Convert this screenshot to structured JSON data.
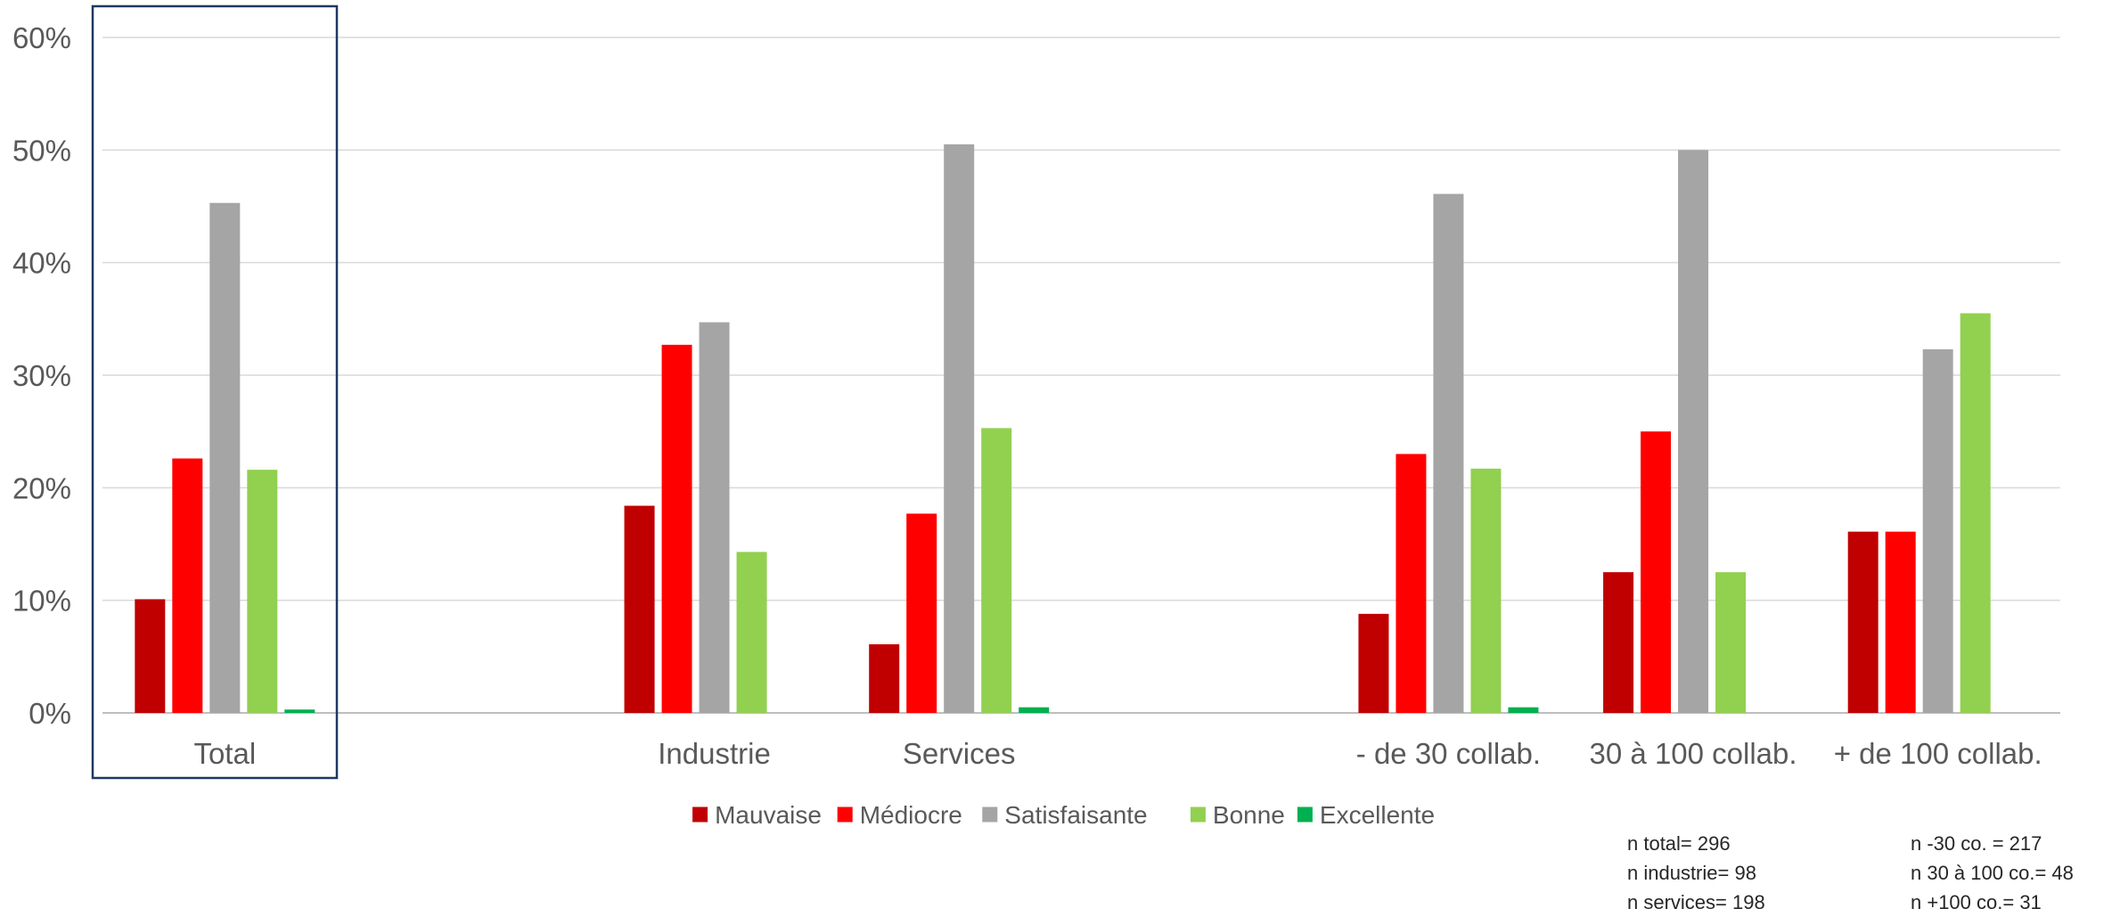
{
  "chart_data": {
    "type": "bar",
    "categories": [
      "Total",
      "",
      "Industrie",
      "Services",
      "",
      "- de 30 collab.",
      "30 à 100 collab.",
      "+ de 100 collab."
    ],
    "series": [
      {
        "name": "Mauvaise",
        "color": "#C00000",
        "values": [
          10.1,
          null,
          18.4,
          6.1,
          null,
          8.8,
          12.5,
          16.1
        ]
      },
      {
        "name": "Médiocre",
        "color": "#FF0000",
        "values": [
          22.6,
          null,
          32.7,
          17.7,
          null,
          23.0,
          25.0,
          16.1
        ]
      },
      {
        "name": "Satisfaisante",
        "color": "#A5A5A5",
        "values": [
          45.3,
          null,
          34.7,
          50.5,
          null,
          46.1,
          50.0,
          32.3
        ]
      },
      {
        "name": "Bonne",
        "color": "#92D050",
        "values": [
          21.6,
          null,
          14.3,
          25.3,
          null,
          21.7,
          12.5,
          35.5
        ]
      },
      {
        "name": "Excellente",
        "color": "#00B050",
        "values": [
          0.3,
          null,
          0.0,
          0.5,
          null,
          0.5,
          0.0,
          0.0
        ]
      }
    ],
    "y_ticks": [
      "0%",
      "10%",
      "20%",
      "30%",
      "40%",
      "50%",
      "60%"
    ],
    "ylim": [
      0,
      60
    ],
    "grid": true,
    "legend_position": "bottom",
    "highlighted_category": "Total"
  },
  "notes": {
    "left": [
      "n total= 296",
      "n industrie= 98",
      "n services= 198"
    ],
    "right": [
      "n -30 co. = 217",
      "n 30 à 100 co.= 48",
      "n +100 co.= 31"
    ]
  }
}
